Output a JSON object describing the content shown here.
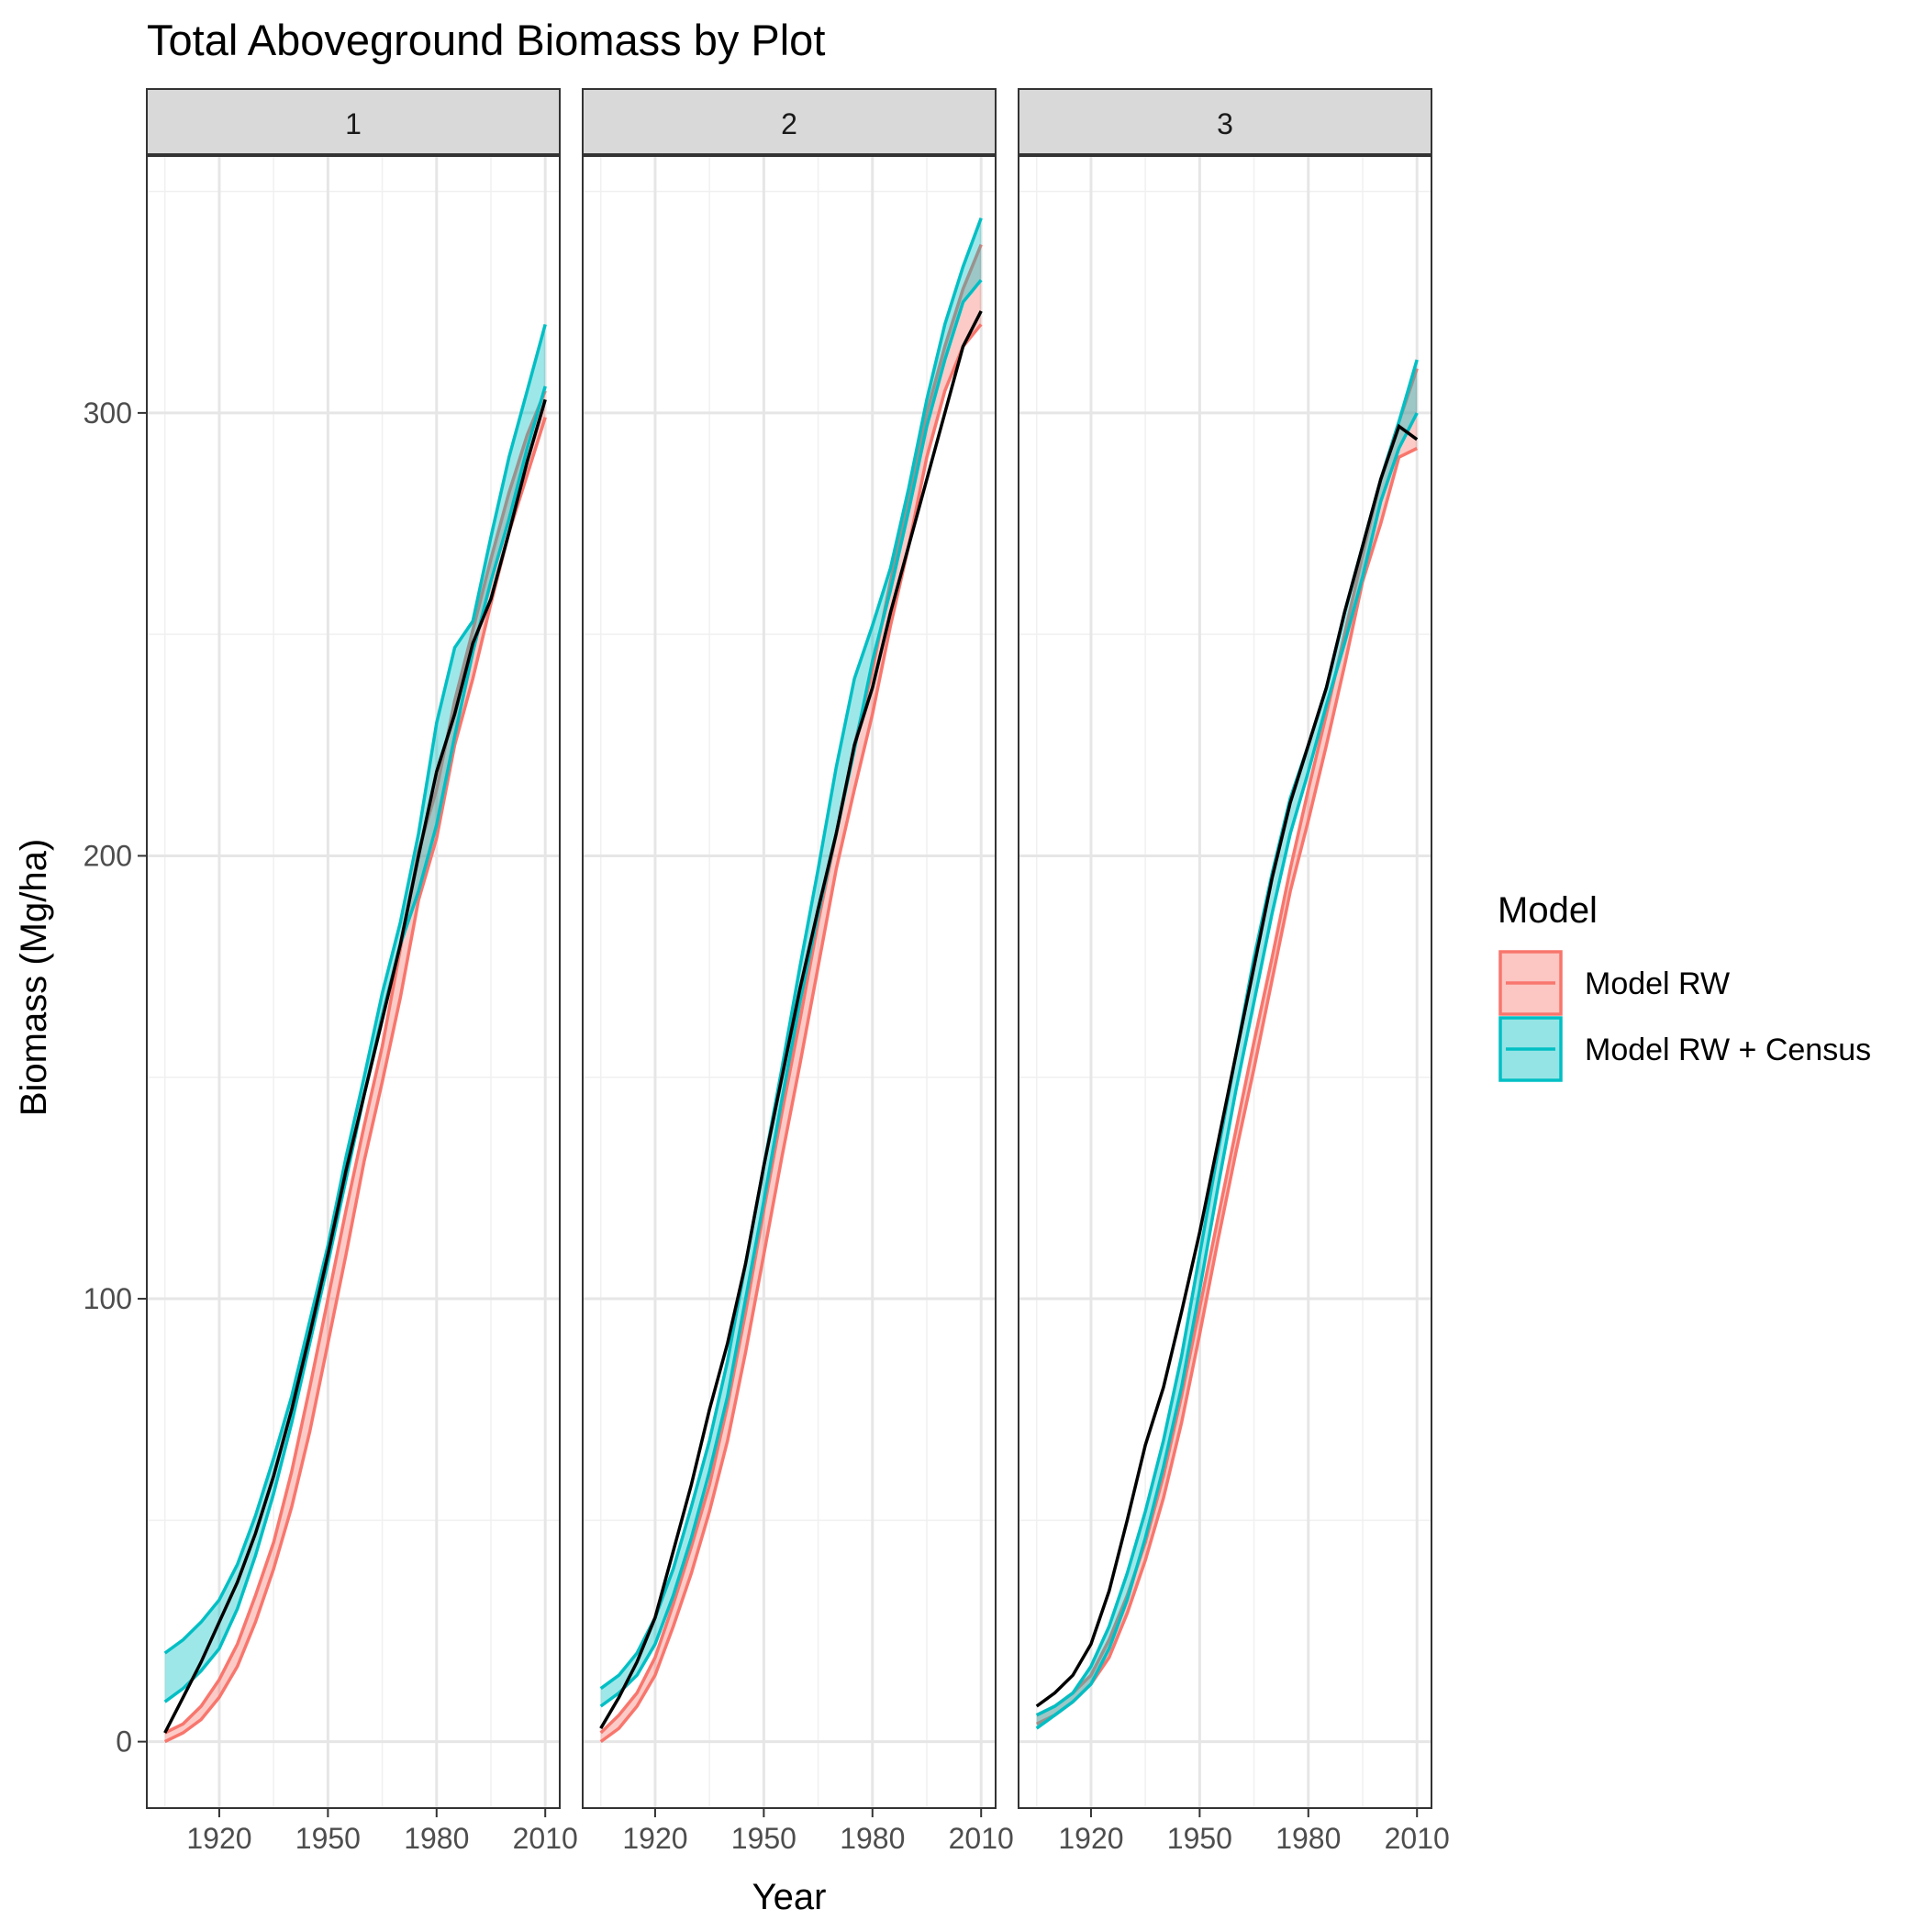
{
  "chart_data": {
    "type": "line",
    "title": "Total Aboveground Biomass by Plot",
    "xlabel": "Year",
    "ylabel": "Biomass (Mg/ha)",
    "xlim": [
      1900,
      2014
    ],
    "ylim": [
      -15,
      358
    ],
    "x_ticks": [
      1920,
      1950,
      1980,
      2010
    ],
    "y_ticks": [
      0,
      100,
      200,
      300
    ],
    "grid": true,
    "legend": {
      "title": "Model",
      "position": "right",
      "entries": [
        "Model RW",
        "Model RW + Census"
      ]
    },
    "colors": {
      "Model RW": "#F8766D",
      "Model RW + Census": "#00BFC4",
      "observed": "#000000",
      "strip": "#D9D9D9"
    },
    "panels": [
      {
        "label": "1",
        "series": [
          {
            "name": "Model RW",
            "x": [
              1905,
              1910,
              1915,
              1920,
              1925,
              1930,
              1935,
              1940,
              1945,
              1950,
              1955,
              1960,
              1965,
              1970,
              1975,
              1980,
              1985,
              1990,
              1995,
              2000,
              2005,
              2010
            ],
            "lower": [
              0,
              2,
              5,
              10,
              17,
              27,
              39,
              53,
              70,
              90,
              110,
              131,
              149,
              168,
              190,
              204,
              225,
              240,
              257,
              273,
              286,
              299
            ],
            "upper": [
              2,
              4,
              8,
              14,
              22,
              33,
              45,
              61,
              80,
              100,
              120,
              139,
              157,
              179,
              201,
              215,
              235,
              251,
              267,
              282,
              295,
              305
            ]
          },
          {
            "name": "Model RW + Census",
            "x": [
              1905,
              1910,
              1915,
              1920,
              1925,
              1930,
              1935,
              1940,
              1945,
              1950,
              1955,
              1960,
              1965,
              1970,
              1975,
              1980,
              1985,
              1990,
              1995,
              2000,
              2005,
              2010
            ],
            "lower": [
              9,
              12,
              16,
              21,
              30,
              42,
              56,
              72,
              90,
              108,
              127,
              146,
              164,
              180,
              192,
              207,
              227,
              246,
              262,
              276,
              292,
              306
            ],
            "upper": [
              20,
              23,
              27,
              32,
              40,
              51,
              64,
              78,
              95,
              112,
              132,
              150,
              169,
              185,
              205,
              230,
              247,
              253,
              272,
              290,
              305,
              320
            ]
          },
          {
            "name": "",
            "x": [
              1905,
              1910,
              1915,
              1920,
              1925,
              1930,
              1935,
              1940,
              1945,
              1950,
              1955,
              1960,
              1965,
              1970,
              1975,
              1980,
              1985,
              1990,
              1995,
              2000,
              2005,
              2010
            ],
            "y": [
              2,
              10,
              18,
              27,
              36,
              47,
              60,
              75,
              92,
              110,
              129,
              146,
              163,
              180,
              200,
              219,
              232,
              248,
              258,
              273,
              289,
              303
            ]
          }
        ]
      },
      {
        "label": "2",
        "series": [
          {
            "name": "Model RW",
            "x": [
              1905,
              1910,
              1915,
              1920,
              1925,
              1930,
              1935,
              1940,
              1945,
              1950,
              1955,
              1960,
              1965,
              1970,
              1975,
              1980,
              1985,
              1990,
              1995,
              2000,
              2005,
              2010
            ],
            "lower": [
              0,
              3,
              8,
              15,
              26,
              38,
              52,
              68,
              88,
              110,
              132,
              153,
              175,
              197,
              215,
              232,
              252,
              270,
              290,
              305,
              315,
              320
            ],
            "upper": [
              2,
              6,
              11,
              19,
              31,
              44,
              58,
              76,
              97,
              120,
              142,
              163,
              185,
              205,
              225,
              242,
              262,
              280,
              300,
              315,
              328,
              338
            ]
          },
          {
            "name": "Model RW + Census",
            "x": [
              1905,
              1910,
              1915,
              1920,
              1925,
              1930,
              1935,
              1940,
              1945,
              1950,
              1955,
              1960,
              1965,
              1970,
              1975,
              1980,
              1985,
              1990,
              1995,
              2000,
              2005,
              2010
            ],
            "lower": [
              8,
              11,
              15,
              22,
              33,
              46,
              61,
              78,
              100,
              122,
              145,
              167,
              187,
              205,
              224,
              244,
              260,
              278,
              297,
              312,
              325,
              330
            ],
            "upper": [
              12,
              15,
              20,
              28,
              39,
              53,
              68,
              86,
              108,
              130,
              152,
              175,
              197,
              220,
              240,
              252,
              265,
              283,
              303,
              320,
              333,
              344
            ]
          },
          {
            "name": "",
            "x": [
              1905,
              1910,
              1915,
              1920,
              1925,
              1930,
              1935,
              1940,
              1945,
              1950,
              1955,
              1960,
              1965,
              1970,
              1975,
              1980,
              1985,
              1990,
              1995,
              2000,
              2005,
              2010
            ],
            "y": [
              3,
              10,
              18,
              28,
              43,
              58,
              75,
              90,
              108,
              130,
              150,
              170,
              188,
              205,
              225,
              238,
              255,
              270,
              285,
              300,
              315,
              323
            ]
          }
        ]
      },
      {
        "label": "3",
        "series": [
          {
            "name": "Model RW",
            "x": [
              1905,
              1910,
              1915,
              1920,
              1925,
              1930,
              1935,
              1940,
              1945,
              1950,
              1955,
              1960,
              1965,
              1970,
              1975,
              1980,
              1985,
              1990,
              1995,
              2000,
              2005,
              2010
            ],
            "lower": [
              4,
              6,
              9,
              13,
              19,
              29,
              41,
              55,
              72,
              92,
              113,
              133,
              152,
              172,
              192,
              208,
              225,
              243,
              262,
              275,
              290,
              292
            ],
            "upper": [
              6,
              8,
              11,
              15,
              23,
              33,
              45,
              60,
              78,
              98,
              118,
              138,
              158,
              177,
              197,
              215,
              232,
              250,
              268,
              285,
              298,
              310
            ]
          },
          {
            "name": "Model RW + Census",
            "x": [
              1905,
              1910,
              1915,
              1920,
              1925,
              1930,
              1935,
              1940,
              1945,
              1950,
              1955,
              1960,
              1965,
              1970,
              1975,
              1980,
              1985,
              1990,
              1995,
              2000,
              2005,
              2010
            ],
            "lower": [
              3,
              6,
              9,
              13,
              21,
              32,
              46,
              62,
              80,
              102,
              125,
              147,
              167,
              187,
              205,
              219,
              234,
              248,
              263,
              280,
              292,
              300
            ],
            "upper": [
              6,
              8,
              11,
              17,
              26,
              38,
              52,
              68,
              87,
              110,
              133,
              155,
              177,
              196,
              213,
              225,
              238,
              255,
              270,
              285,
              298,
              312
            ]
          },
          {
            "name": "",
            "x": [
              1905,
              1910,
              1915,
              1920,
              1925,
              1930,
              1935,
              1940,
              1945,
              1950,
              1955,
              1960,
              1965,
              1970,
              1975,
              1980,
              1985,
              1990,
              1995,
              2000,
              2005,
              2010
            ],
            "y": [
              8,
              11,
              15,
              22,
              34,
              50,
              67,
              80,
              97,
              115,
              135,
              155,
              175,
              195,
              212,
              225,
              238,
              255,
              270,
              285,
              297,
              294
            ]
          }
        ]
      }
    ]
  }
}
